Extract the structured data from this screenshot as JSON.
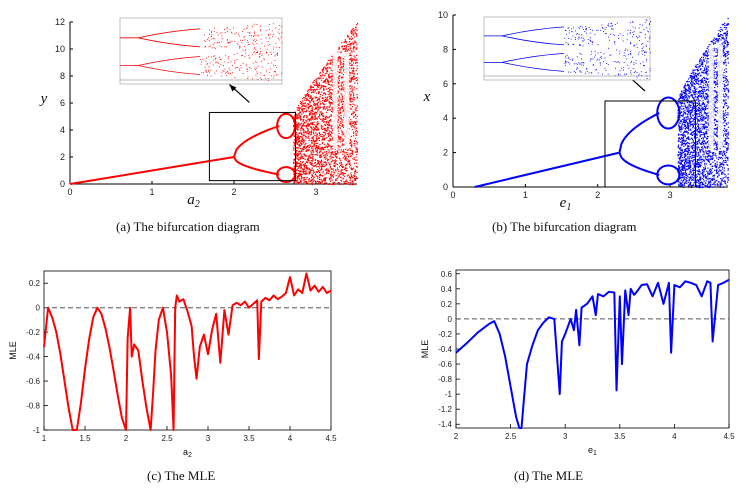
{
  "colors": {
    "red": "#ff0000",
    "blue": "#0000ff",
    "axis": "#000000",
    "dash": "#555555"
  },
  "chart_data": [
    {
      "id": "a",
      "type": "scatter",
      "title": "",
      "caption": "(a)  The bifurcation diagram",
      "xlabel_main": "a",
      "xlabel_sub": "2",
      "ylabel": "y",
      "xlim": [
        0,
        3.5
      ],
      "ylim": [
        0,
        12
      ],
      "xticks": [
        "0",
        "1",
        "2",
        "3"
      ],
      "yticks": [
        "0",
        "2",
        "4",
        "6",
        "8",
        "10",
        "12"
      ],
      "annotations": [
        "zoom box around the period-doubling region with an arrow to the enlarged inset"
      ],
      "series": [
        {
          "name": "bifurcation",
          "color": "#ff0000",
          "fixed_point_line": {
            "x": [
              0,
              2.0
            ],
            "y": [
              0,
              2.0
            ]
          },
          "period2_split_at": 2.0,
          "period4_split_at": 2.55,
          "chaos_onset": 2.72,
          "chaos_upper_bound_at_x_end": 12
        }
      ]
    },
    {
      "id": "b",
      "type": "scatter",
      "title": "",
      "caption": "(b)  The bifurcation diagram",
      "xlabel_main": "e",
      "xlabel_sub": "1",
      "ylabel": "x",
      "xlim": [
        0,
        3.8
      ],
      "ylim": [
        0,
        10
      ],
      "xticks": [
        "0",
        "1",
        "2",
        "3"
      ],
      "yticks": [
        "0",
        "2",
        "4",
        "6",
        "8",
        "10"
      ],
      "annotations": [
        "zoom box around the period-doubling region with an arrow to the enlarged inset"
      ],
      "series": [
        {
          "name": "bifurcation",
          "color": "#0000ff",
          "fixed_point_line": {
            "x": [
              0.3,
              2.3
            ],
            "y": [
              0,
              2.0
            ]
          },
          "period2_split_at": 2.3,
          "period4_split_at": 2.85,
          "chaos_onset": 3.1,
          "chaos_upper_bound_at_x_end": 10
        }
      ]
    },
    {
      "id": "c",
      "type": "line",
      "title": "",
      "caption": "(c)  The MLE",
      "xlabel_main": "a",
      "xlabel_sub": "2",
      "ylabel": "MLE",
      "xlim": [
        1,
        4.5
      ],
      "ylim": [
        -1,
        0.3
      ],
      "xticks": [
        "1",
        "1.5",
        "2",
        "2.5",
        "3",
        "3.5",
        "4",
        "4.5"
      ],
      "yticks": [
        "-1",
        "-0.8",
        "-0.6",
        "-0.4",
        "-0.2",
        "0",
        "0.2"
      ],
      "reference_line": {
        "y": 0,
        "style": "dashed"
      },
      "series": [
        {
          "name": "MLE",
          "color": "#ff0000",
          "x": [
            1.0,
            1.05,
            1.1,
            1.15,
            1.2,
            1.25,
            1.3,
            1.35,
            1.4,
            1.45,
            1.5,
            1.55,
            1.6,
            1.65,
            1.7,
            1.75,
            1.8,
            1.85,
            1.9,
            1.95,
            2.0,
            2.02,
            2.05,
            2.07,
            2.1,
            2.15,
            2.2,
            2.25,
            2.3,
            2.33,
            2.36,
            2.4,
            2.45,
            2.5,
            2.55,
            2.58,
            2.6,
            2.62,
            2.65,
            2.7,
            2.75,
            2.8,
            2.83,
            2.86,
            2.9,
            2.95,
            3.0,
            3.05,
            3.1,
            3.15,
            3.2,
            3.25,
            3.3,
            3.35,
            3.4,
            3.45,
            3.5,
            3.55,
            3.6,
            3.62,
            3.65,
            3.7,
            3.75,
            3.8,
            3.85,
            3.9,
            3.95,
            4.0,
            4.05,
            4.1,
            4.15,
            4.2,
            4.25,
            4.3,
            4.35,
            4.4,
            4.45,
            4.5
          ],
          "y": [
            -0.32,
            0.0,
            -0.08,
            -0.2,
            -0.38,
            -0.6,
            -0.82,
            -1.0,
            -1.0,
            -0.78,
            -0.5,
            -0.26,
            -0.08,
            0.0,
            -0.05,
            -0.17,
            -0.33,
            -0.52,
            -0.72,
            -0.9,
            -1.0,
            -0.25,
            0.0,
            -0.4,
            -0.3,
            -0.35,
            -0.6,
            -0.82,
            -1.0,
            -0.7,
            -0.35,
            -0.1,
            0.0,
            -0.2,
            -0.55,
            -1.0,
            0.0,
            0.1,
            0.05,
            0.07,
            -0.03,
            -0.15,
            -0.4,
            -0.58,
            -0.32,
            -0.22,
            -0.38,
            -0.18,
            -0.05,
            -0.45,
            -0.02,
            -0.22,
            0.02,
            0.04,
            0.02,
            0.05,
            0.0,
            0.03,
            0.06,
            -0.42,
            0.05,
            0.08,
            0.06,
            0.1,
            0.07,
            0.09,
            0.12,
            0.25,
            0.1,
            0.15,
            0.12,
            0.28,
            0.14,
            0.18,
            0.13,
            0.17,
            0.12,
            0.14
          ]
        }
      ]
    },
    {
      "id": "d",
      "type": "line",
      "title": "",
      "caption": "(d)  The MLE",
      "xlabel_main": "e",
      "xlabel_sub": "1",
      "ylabel": "MLE",
      "xlim": [
        2,
        4.5
      ],
      "ylim": [
        -1.45,
        0.65
      ],
      "xticks": [
        "2",
        "2.5",
        "3",
        "3.5",
        "4",
        "4.5"
      ],
      "yticks": [
        "-1.4",
        "-1.2",
        "-1",
        "-0.8",
        "-0.6",
        "-0.4",
        "-0.2",
        "0",
        "0.2",
        "0.4",
        "0.6"
      ],
      "reference_line": {
        "y": 0,
        "style": "dashed"
      },
      "series": [
        {
          "name": "MLE",
          "color": "#0000ff",
          "x": [
            2.0,
            2.1,
            2.2,
            2.3,
            2.35,
            2.4,
            2.45,
            2.5,
            2.55,
            2.58,
            2.6,
            2.62,
            2.65,
            2.7,
            2.75,
            2.8,
            2.85,
            2.9,
            2.93,
            2.95,
            2.97,
            3.0,
            3.05,
            3.08,
            3.1,
            3.13,
            3.15,
            3.2,
            3.25,
            3.28,
            3.3,
            3.35,
            3.4,
            3.45,
            3.47,
            3.5,
            3.52,
            3.55,
            3.58,
            3.6,
            3.63,
            3.65,
            3.7,
            3.75,
            3.8,
            3.85,
            3.9,
            3.95,
            3.97,
            4.0,
            4.05,
            4.1,
            4.15,
            4.2,
            4.25,
            4.3,
            4.33,
            4.35,
            4.4,
            4.45,
            4.5
          ],
          "y": [
            -0.45,
            -0.32,
            -0.18,
            -0.07,
            -0.03,
            -0.2,
            -0.5,
            -0.9,
            -1.3,
            -1.45,
            -1.45,
            -1.1,
            -0.6,
            -0.35,
            -0.15,
            -0.05,
            0.02,
            0.0,
            -0.6,
            -1.0,
            -0.3,
            -0.2,
            0.0,
            -0.15,
            0.12,
            -0.35,
            0.15,
            0.2,
            0.3,
            0.05,
            0.33,
            0.3,
            0.36,
            0.35,
            -0.95,
            0.3,
            -0.6,
            0.38,
            0.05,
            0.4,
            0.32,
            0.35,
            0.45,
            0.46,
            0.3,
            0.48,
            0.2,
            0.48,
            -0.45,
            0.45,
            0.42,
            0.5,
            0.48,
            0.45,
            0.3,
            0.5,
            0.48,
            -0.3,
            0.45,
            0.48,
            0.52
          ]
        }
      ]
    }
  ]
}
